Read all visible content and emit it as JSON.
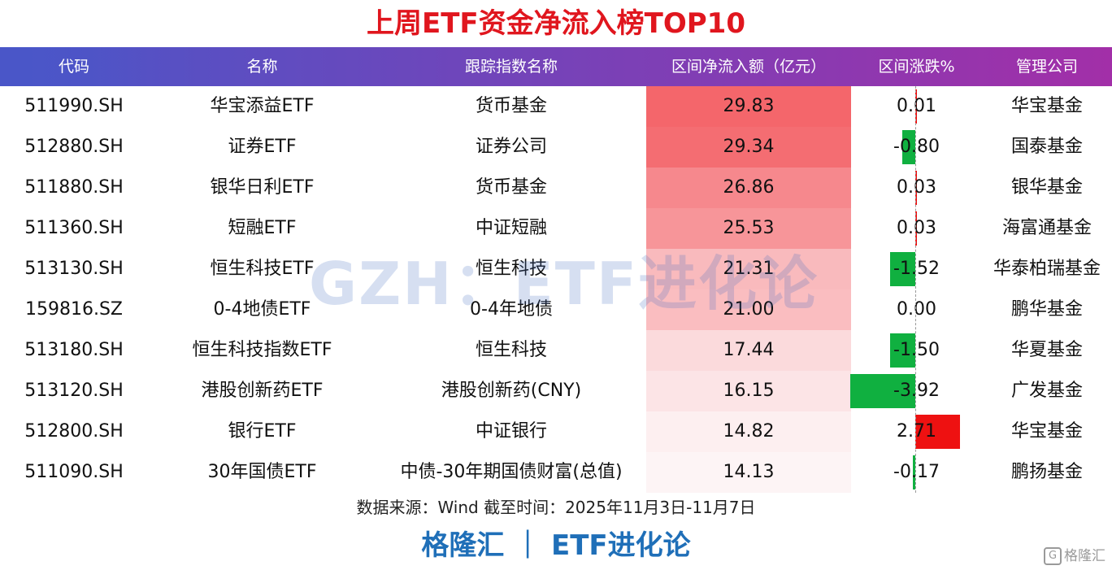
{
  "title": "上周ETF资金净流入榜TOP10",
  "columns": [
    "代码",
    "名称",
    "跟踪指数名称",
    "区间净流入额（亿元）",
    "区间涨跌%",
    "管理公司"
  ],
  "rows": [
    {
      "code": "511990.SH",
      "name": "华宝添益ETF",
      "index": "货币基金",
      "flow": "29.83",
      "flow_value": 29.83,
      "change": "0.01",
      "change_value": 0.01,
      "company": "华宝基金"
    },
    {
      "code": "512880.SH",
      "name": "证券ETF",
      "index": "证券公司",
      "flow": "29.34",
      "flow_value": 29.34,
      "change": "-0.80",
      "change_value": -0.8,
      "company": "国泰基金"
    },
    {
      "code": "511880.SH",
      "name": "银华日利ETF",
      "index": "货币基金",
      "flow": "26.86",
      "flow_value": 26.86,
      "change": "0.03",
      "change_value": 0.03,
      "company": "银华基金"
    },
    {
      "code": "511360.SH",
      "name": "短融ETF",
      "index": "中证短融",
      "flow": "25.53",
      "flow_value": 25.53,
      "change": "0.03",
      "change_value": 0.03,
      "company": "海富通基金"
    },
    {
      "code": "513130.SH",
      "name": "恒生科技ETF",
      "index": "恒生科技",
      "flow": "21.31",
      "flow_value": 21.31,
      "change": "-1.52",
      "change_value": -1.52,
      "company": "华泰柏瑞基金"
    },
    {
      "code": "159816.SZ",
      "name": "0-4地债ETF",
      "index": "0-4年地债",
      "flow": "21.00",
      "flow_value": 21.0,
      "change": "0.00",
      "change_value": 0.0,
      "company": "鹏华基金"
    },
    {
      "code": "513180.SH",
      "name": "恒生科技指数ETF",
      "index": "恒生科技",
      "flow": "17.44",
      "flow_value": 17.44,
      "change": "-1.50",
      "change_value": -1.5,
      "company": "华夏基金"
    },
    {
      "code": "513120.SH",
      "name": "港股创新药ETF",
      "index": "港股创新药(CNY)",
      "flow": "16.15",
      "flow_value": 16.15,
      "change": "-3.92",
      "change_value": -3.92,
      "company": "广发基金"
    },
    {
      "code": "512800.SH",
      "name": "银行ETF",
      "index": "中证银行",
      "flow": "14.82",
      "flow_value": 14.82,
      "change": "2.71",
      "change_value": 2.71,
      "company": "华宝基金"
    },
    {
      "code": "511090.SH",
      "name": "30年国债ETF",
      "index": "中债-30年期国债财富(总值)",
      "flow": "14.13",
      "flow_value": 14.13,
      "change": "-0.17",
      "change_value": -0.17,
      "company": "鹏扬基金"
    }
  ],
  "watermark": "GZH：ETF进化论",
  "source": "数据来源：Wind 截至时间：2025年11月3日-11月7日",
  "brand": "格隆汇 ｜ ETF进化论",
  "logo_text": "格隆汇",
  "logo_icon": "G",
  "colors": {
    "title": "#e0161e",
    "header_start": "#4a56c8",
    "header_end": "#a22fa8",
    "flow_high": "#f4666b",
    "flow_low": "#ffffff",
    "positive": "#ee1111",
    "negative": "#10b040",
    "brand": "#1f6fb8"
  }
}
